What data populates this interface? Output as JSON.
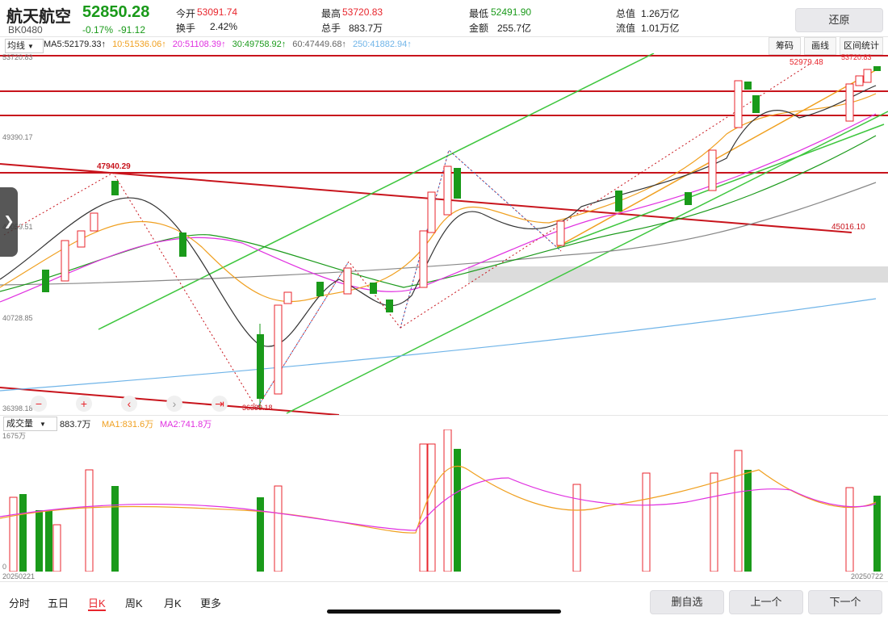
{
  "header": {
    "name": "航天航空",
    "code": "BK0480",
    "price": "52850.28",
    "change_pct": "-0.17%",
    "change": "-91.12",
    "open_label": "今开",
    "open": "53091.74",
    "turnover_label": "换手",
    "turnover": "2.42%",
    "high_label": "最高",
    "high": "53720.83",
    "volume_label": "总手",
    "volume": "883.7万",
    "low_label": "最低",
    "low": "52491.90",
    "amount_label": "金额",
    "amount": "255.7亿",
    "total_mv_label": "总值",
    "total_mv": "1.26万亿",
    "float_mv_label": "流值",
    "float_mv": "1.01万亿",
    "restore_button": "还原"
  },
  "ma_bar": {
    "selector": "均线",
    "items": [
      "MA5:52179.33↑",
      "10:51536.06↑",
      "20:51108.39↑",
      "30:49758.92↑",
      "60:47449.68↑",
      "250:41882.94↑"
    ],
    "colors": [
      "#222222",
      "#f0a020",
      "#e030e0",
      "#1a9a1a",
      "#666666",
      "#6fb4e8"
    ]
  },
  "tools": {
    "chips": "筹码",
    "draw": "画线",
    "interval": "区间统计"
  },
  "price_axis": {
    "top": "53720.83",
    "p1": "49390.17",
    "p2": "45059.51",
    "p3": "40728.85",
    "bottom": "36398.18"
  },
  "annotations": {
    "high_peak": "52979.48",
    "top_right": "53720.83",
    "left_peak": "47940.29",
    "trendline_val": "45016.10",
    "low_point": "36399.18"
  },
  "volume_bar": {
    "selector": "成交量",
    "value": "883.7万",
    "ma1": "MA1:831.6万",
    "ma2": "MA2:741.8万",
    "max": "1675万",
    "zero": "0",
    "date_start": "20250221",
    "date_end": "20250722"
  },
  "bottom_tabs": [
    "分时",
    "五日",
    "日K",
    "周K",
    "月K",
    "更多"
  ],
  "bottom_buttons": {
    "remove": "删自选",
    "prev": "上一个",
    "next": "下一个"
  },
  "zoom_controls": [
    "−",
    "+",
    "‹",
    "›",
    "⇥"
  ]
}
